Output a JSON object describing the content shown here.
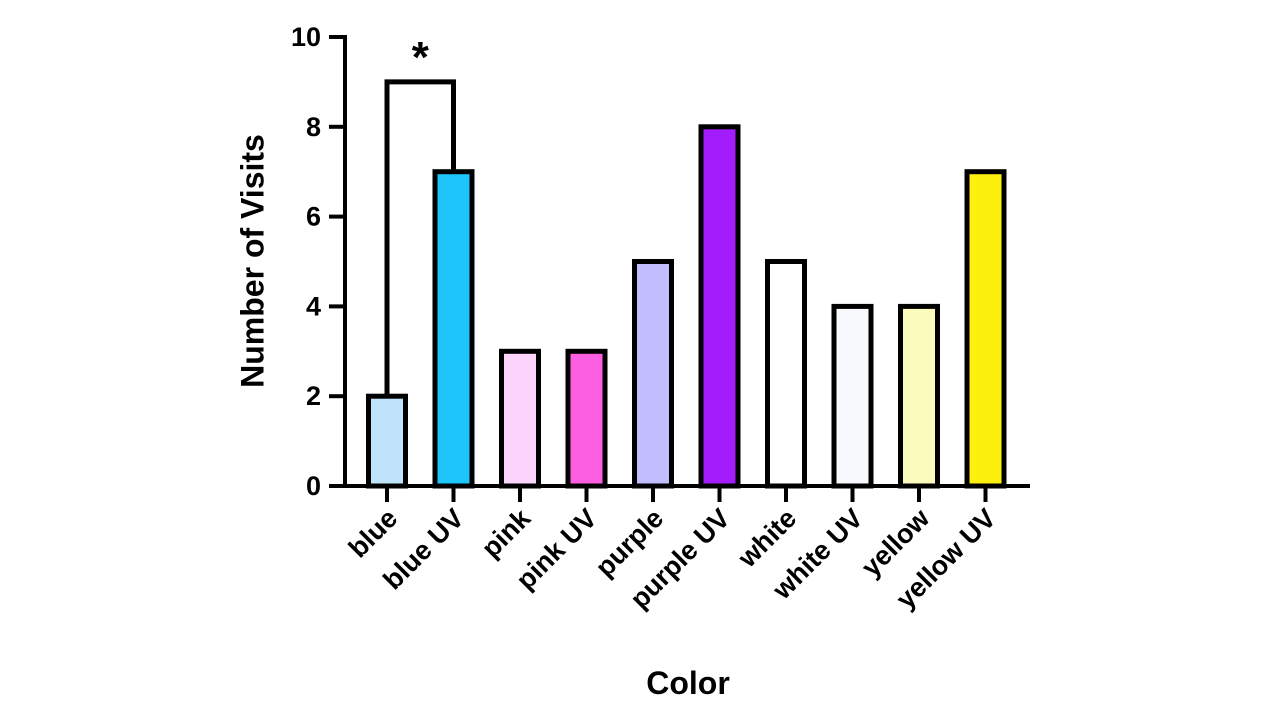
{
  "chart_data": {
    "type": "bar",
    "title": "",
    "xlabel": "Color",
    "ylabel": "Number of Visits",
    "ylim": [
      0,
      10
    ],
    "yticks": [
      "0",
      "2",
      "4",
      "6",
      "8",
      "10"
    ],
    "grid": false,
    "categories": [
      "blue",
      "blue UV",
      "pink",
      "pink UV",
      "purple",
      "purple UV",
      "white",
      "white UV",
      "yellow",
      "yellow UV"
    ],
    "values": [
      2,
      7,
      3,
      3,
      5,
      8,
      5,
      4,
      4,
      7
    ],
    "colors": [
      "#bfe3fb",
      "#1ec5fb",
      "#fdd4fb",
      "#fd5fe3",
      "#c2bdfd",
      "#a31cfb",
      "#ffffff",
      "#f8f9fd",
      "#fbfbbb",
      "#fbf10c"
    ],
    "annotations": [
      {
        "label": "*",
        "from": "blue",
        "to": "blue UV",
        "y": 9
      }
    ]
  }
}
